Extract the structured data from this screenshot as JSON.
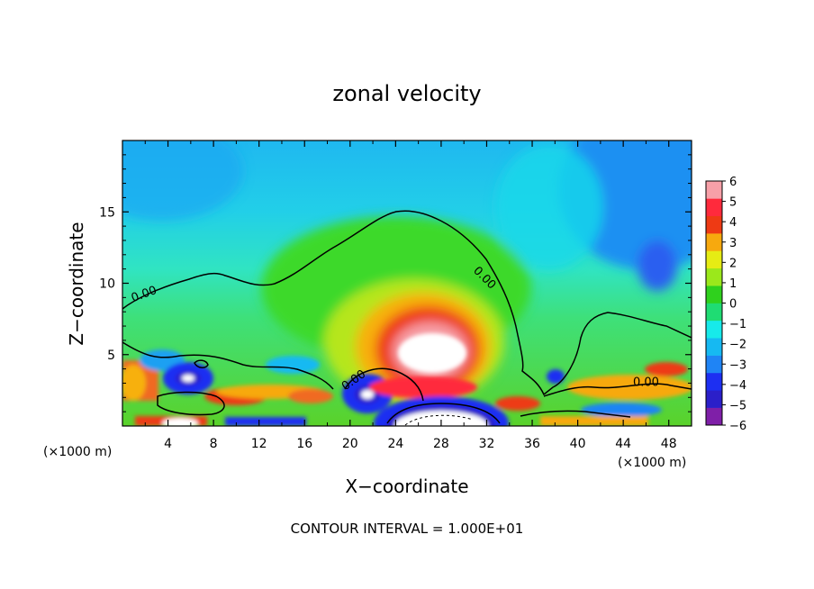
{
  "chart_data": {
    "type": "heatmap",
    "title": "zonal velocity",
    "xlabel": "X−coordinate",
    "ylabel": "Z−coordinate",
    "x_unit_left": "(×1000 m)",
    "x_unit_right": "(×1000 m)",
    "xlim": [
      0,
      50
    ],
    "ylim": [
      0,
      20
    ],
    "x_ticks": [
      4,
      8,
      12,
      16,
      20,
      24,
      28,
      32,
      36,
      40,
      44,
      48
    ],
    "x_tick_labels": [
      "4",
      "8",
      "12",
      "16",
      "20",
      "24",
      "28",
      "32",
      "36",
      "40",
      "44",
      "48"
    ],
    "y_ticks": [
      5,
      10,
      15
    ],
    "y_tick_labels": [
      "5",
      "10",
      "15"
    ],
    "colorbar": {
      "levels": [
        -6,
        -5,
        -4,
        -3,
        -2,
        -1,
        0,
        1,
        2,
        3,
        4,
        5,
        6
      ],
      "labels": [
        "−6",
        "−5",
        "−4",
        "−3",
        "−2",
        "−1",
        "0",
        "1",
        "2",
        "3",
        "4",
        "5",
        "6"
      ],
      "colors": [
        "#7f1fa8",
        "#2b1fc9",
        "#1d2ff2",
        "#1f84f5",
        "#16b9f2",
        "#17eaea",
        "#1fdc73",
        "#2fd11d",
        "#9be81b",
        "#e6ec14",
        "#f7a90e",
        "#ee3a14",
        "#ff2a3c",
        "#f7a0a8"
      ]
    },
    "contour_labels": [
      {
        "text": "0.00",
        "x": 2.0,
        "y": 9.0,
        "angle": -20
      },
      {
        "text": "0.00",
        "x": 31.6,
        "y": 10.2,
        "angle": 45
      },
      {
        "text": "0.00",
        "x": 20.5,
        "y": 3.0,
        "angle": -35
      },
      {
        "text": "0.00",
        "x": 46.0,
        "y": 2.8,
        "angle": 0
      }
    ],
    "features": [
      {
        "name": "positive jet core",
        "x": 27.2,
        "y": 5.0,
        "value": 6
      },
      {
        "name": "negative core",
        "x": 5.8,
        "y": 3.4,
        "value": -6
      },
      {
        "name": "negative core",
        "x": 21.6,
        "y": 2.3,
        "value": -6
      },
      {
        "name": "upper-right negative",
        "x": 46.0,
        "y": 11.5,
        "value": -3
      }
    ],
    "footer": "CONTOUR INTERVAL = 1.000E+01"
  }
}
